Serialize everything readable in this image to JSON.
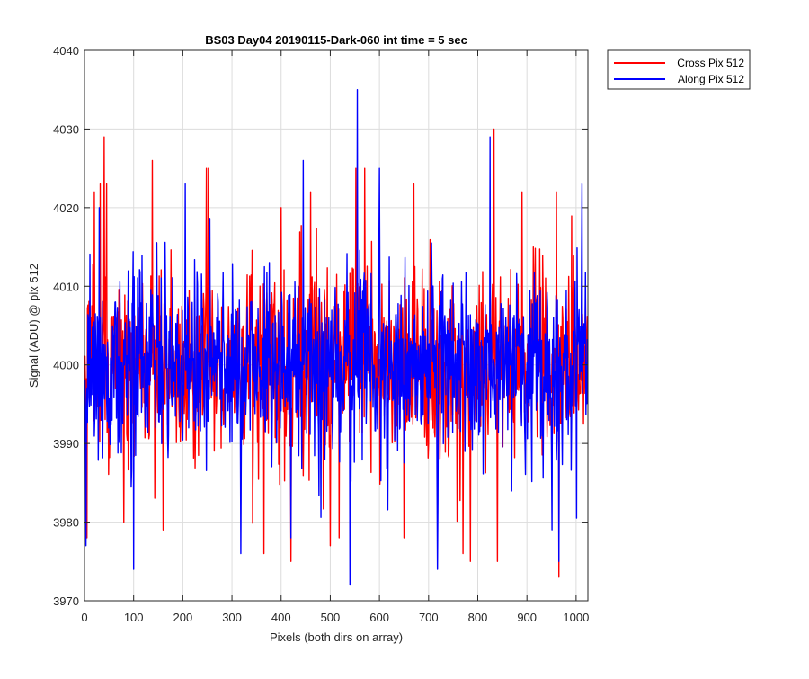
{
  "chart_data": {
    "type": "line",
    "title": "BS03 Day04 20190115-Dark-060 int time = 5 sec",
    "xlabel": "Pixels (both dirs on array)",
    "ylabel": "Signal (ADU) @ pix 512",
    "xlim": [
      0,
      1024
    ],
    "ylim": [
      3970,
      4040
    ],
    "xticks": [
      0,
      100,
      200,
      300,
      400,
      500,
      600,
      700,
      800,
      900,
      1000
    ],
    "yticks": [
      3970,
      3980,
      3990,
      4000,
      4010,
      4020,
      4030,
      4040
    ],
    "xtick_labels": [
      "0",
      "100",
      "200",
      "300",
      "400",
      "500",
      "600",
      "700",
      "800",
      "900",
      "1000"
    ],
    "ytick_labels": [
      "3970",
      "3980",
      "3990",
      "4000",
      "4010",
      "4020",
      "4030",
      "4040"
    ],
    "grid": true,
    "legend_position": "outside-top-right",
    "series": [
      {
        "name": "Cross Pix 512",
        "color": "#ff0000",
        "noise_mean": 4000,
        "noise_std": 6,
        "peaks": [
          [
            20,
            4022
          ],
          [
            32,
            4023
          ],
          [
            40,
            4029
          ],
          [
            45,
            4023
          ],
          [
            138,
            4026
          ],
          [
            248,
            4025
          ],
          [
            252,
            4025
          ],
          [
            400,
            4020
          ],
          [
            460,
            4022
          ],
          [
            552,
            4025
          ],
          [
            570,
            4025
          ],
          [
            670,
            4023
          ],
          [
            833,
            4030
          ],
          [
            890,
            4022
          ],
          [
            960,
            4022
          ]
        ],
        "troughs": [
          [
            5,
            3978
          ],
          [
            80,
            3980
          ],
          [
            160,
            3979
          ],
          [
            365,
            3976
          ],
          [
            420,
            3975
          ],
          [
            500,
            3977
          ],
          [
            650,
            3978
          ],
          [
            770,
            3976
          ],
          [
            785,
            3975
          ],
          [
            840,
            3975
          ],
          [
            965,
            3973
          ]
        ]
      },
      {
        "name": "Along Pix 512",
        "color": "#0000ff",
        "noise_mean": 4000,
        "noise_std": 6,
        "peaks": [
          [
            30,
            4020
          ],
          [
            205,
            4023
          ],
          [
            445,
            4026
          ],
          [
            555,
            4035
          ],
          [
            600,
            4025
          ],
          [
            825,
            4029
          ],
          [
            1012,
            4023
          ],
          [
            1025,
            4012
          ]
        ],
        "troughs": [
          [
            3,
            3977
          ],
          [
            100,
            3974
          ],
          [
            318,
            3976
          ],
          [
            420,
            3978
          ],
          [
            540,
            3972
          ],
          [
            718,
            3974
          ],
          [
            965,
            3975
          ]
        ]
      }
    ]
  }
}
